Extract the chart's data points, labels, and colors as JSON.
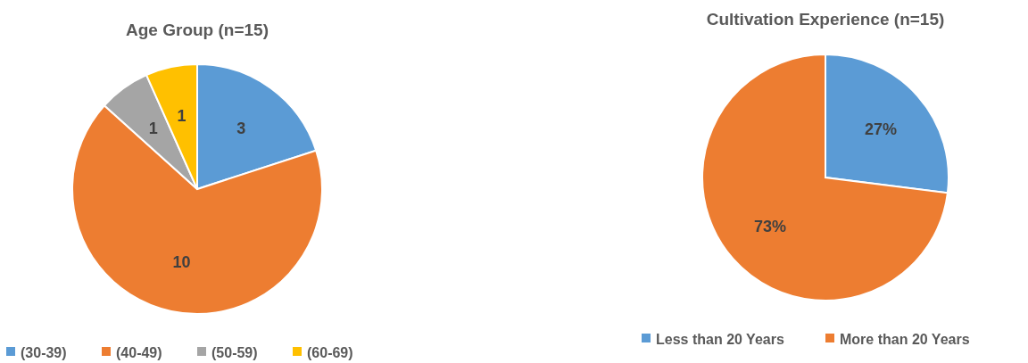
{
  "chart_data": [
    {
      "type": "pie",
      "title": "Age Group (n=15)",
      "categories": [
        "(30-39)",
        "(40-49)",
        "(50-59)",
        "(60-69)"
      ],
      "values": [
        3,
        10,
        1,
        1
      ],
      "colors": [
        "#5b9bd5",
        "#ed7d31",
        "#a5a5a5",
        "#ffc000"
      ],
      "data_labels": true,
      "legend": "bottom"
    },
    {
      "type": "pie",
      "title": "Cultivation Experience (n=15)",
      "categories": [
        "Less than 20 Years",
        "More than 20 Years"
      ],
      "values": [
        27,
        73
      ],
      "colors": [
        "#5b9bd5",
        "#ed7d31"
      ],
      "value_labels": [
        "27%",
        "73%"
      ],
      "legend": "bottom"
    }
  ]
}
